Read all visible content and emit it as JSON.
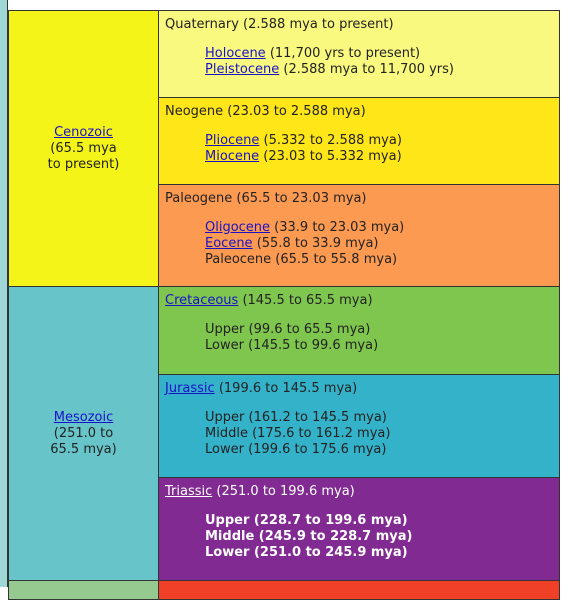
{
  "colors": {
    "cenozoic": "#f4f418",
    "mesozoic": "#67c5ca",
    "quaternary": "#f9f97f",
    "neogene": "#ffe619",
    "paleogene": "#fd9a52",
    "cretaceous": "#7fc64e",
    "jurassic": "#34b2c9",
    "triassic": "#812b92",
    "next_era": "#95c98f",
    "next_period": "#f04028"
  },
  "eras": [
    {
      "name": "Cenozoic",
      "line2": "(65.5 mya",
      "line3": "to present)"
    },
    {
      "name": "Mesozoic",
      "line2": "(251.0 to",
      "line3": "65.5 mya)"
    }
  ],
  "periods": [
    {
      "name": "Quaternary",
      "range": " (2.588 mya to present)",
      "epochs": [
        {
          "name": "Holocene",
          "range": " (11,700 yrs to present)"
        },
        {
          "name": "Pleistocene",
          "range": " (2.588 mya to 11,700 yrs)"
        }
      ]
    },
    {
      "name": "Neogene",
      "range": " (23.03 to 2.588 mya)",
      "epochs": [
        {
          "name": "Pliocene",
          "range": " (5.332 to 2.588 mya)"
        },
        {
          "name": "Miocene",
          "range": " (23.03 to 5.332 mya)"
        }
      ]
    },
    {
      "name": "Paleogene",
      "range": " (65.5 to 23.03 mya)",
      "epochs": [
        {
          "name": "Oligocene",
          "range": " (33.9 to 23.03 mya)"
        },
        {
          "name": "Eocene",
          "range": " (55.8 to 33.9 mya)"
        },
        {
          "name": "Paleocene",
          "range": " (65.5 to 55.8 mya)"
        }
      ]
    },
    {
      "name": "Cretaceous",
      "range": " (145.5 to 65.5 mya)",
      "epochs": [
        {
          "name": "Upper",
          "range": " (99.6 to 65.5 mya)"
        },
        {
          "name": "Lower",
          "range": " (145.5 to 99.6 mya)"
        }
      ]
    },
    {
      "name": "Jurassic",
      "range": " (199.6 to 145.5 mya)",
      "epochs": [
        {
          "name": "Upper",
          "range": " (161.2 to 145.5 mya)"
        },
        {
          "name": "Middle",
          "range": " (175.6 to 161.2 mya)"
        },
        {
          "name": "Lower",
          "range": " (199.6 to 175.6 mya)"
        }
      ]
    },
    {
      "name": "Triassic",
      "range": " (251.0 to 199.6 mya)",
      "epochs": [
        {
          "name": "Upper",
          "range": " (228.7 to 199.6 mya)"
        },
        {
          "name": "Middle",
          "range": " (245.9 to 228.7 mya)"
        },
        {
          "name": "Lower",
          "range": " (251.0 to 245.9 mya)"
        }
      ]
    }
  ]
}
